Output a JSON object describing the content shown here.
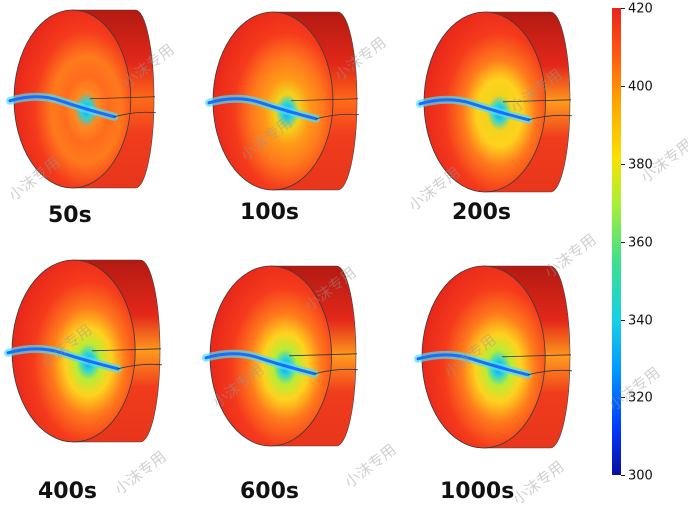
{
  "panels": [
    {
      "label": "50s",
      "cool": 0.05
    },
    {
      "label": "100s",
      "cool": 0.2
    },
    {
      "label": "200s",
      "cool": 0.45
    },
    {
      "label": "400s",
      "cool": 0.65
    },
    {
      "label": "600s",
      "cool": 0.82
    },
    {
      "label": "1000s",
      "cool": 0.95
    }
  ],
  "colorbar": {
    "min": 300,
    "max": 420,
    "ticks": [
      "420",
      "400",
      "380",
      "360",
      "340",
      "320",
      "300"
    ],
    "colors": [
      "#0a0fa0",
      "#0096ff",
      "#16d0e6",
      "#a8ef38",
      "#f7e200",
      "#ffa400",
      "#e8241c"
    ]
  },
  "watermark_text": "小沫专用"
}
